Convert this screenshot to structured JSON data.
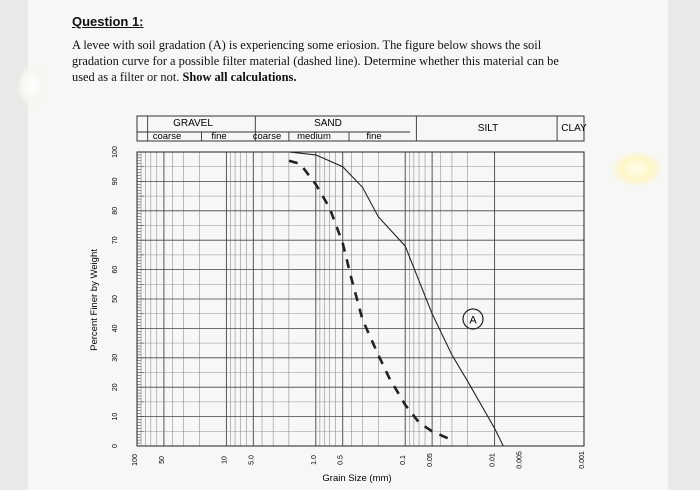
{
  "question": {
    "title": "Question 1:",
    "text": "A levee with soil gradation (A) is experiencing some eriosion. The figure below shows the soil gradation curve for a possible filter material (dashed line). Determine whether this material can be used as a filter or not.",
    "emphasis": "Show all calculations."
  },
  "chart_data": {
    "type": "line",
    "xlabel": "Grain Size (mm)",
    "ylabel": "Percent Finer by Weight",
    "x_scale": "log",
    "x_reversed": true,
    "xlim": [
      100,
      0.001
    ],
    "ylim": [
      0,
      100
    ],
    "y_ticks": [
      "100",
      "90",
      "80",
      "70",
      "60",
      "50",
      "40",
      "30",
      "20",
      "10",
      "0"
    ],
    "x_ticks": [
      "100",
      "50",
      "10",
      "5.0",
      "1.0",
      "0.5",
      "0.1",
      "0.05",
      "0.01",
      "0.005",
      "0.001"
    ],
    "grid": true,
    "categories_header": {
      "groups": [
        "GRAVEL",
        "SAND",
        "SILT",
        "CLAY"
      ],
      "subgroups": [
        "coarse",
        "fine",
        "coarse",
        "medium",
        "fine"
      ]
    },
    "annotation": "A",
    "series": [
      {
        "style": "solid",
        "x": [
          2.0,
          1.0,
          0.5,
          0.3,
          0.2,
          0.1,
          0.05,
          0.03,
          0.02,
          0.01,
          0.008
        ],
        "y": [
          100,
          99,
          95,
          88,
          78,
          68,
          45,
          31,
          22,
          6,
          0
        ]
      },
      {
        "style": "dashed",
        "x": [
          2.0,
          1.5,
          1.0,
          0.7,
          0.5,
          0.4,
          0.3,
          0.2,
          0.15,
          0.1,
          0.07,
          0.05,
          0.03
        ],
        "y": [
          97,
          96,
          89,
          81,
          69,
          57,
          43,
          31,
          23,
          14,
          8,
          5,
          2
        ]
      }
    ]
  }
}
